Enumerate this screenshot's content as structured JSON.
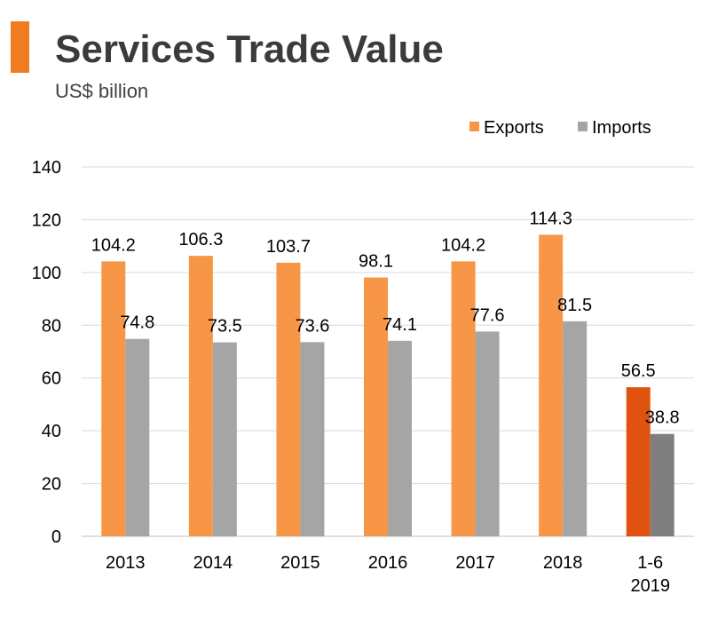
{
  "title": "Services Trade Value",
  "subtitle": "US$ billion",
  "colors": {
    "accent": "#f07c22",
    "exports": "#f79646",
    "imports": "#a5a5a5",
    "exports_highlight": "#e0520f",
    "imports_highlight": "#7f7f7f",
    "grid": "#d9d9d9",
    "axis_text": "#000000"
  },
  "chart_data": {
    "type": "bar",
    "title": "Services Trade Value",
    "subtitle": "US$ billion",
    "categories": [
      [
        "2013"
      ],
      [
        "2014"
      ],
      [
        "2015"
      ],
      [
        "2016"
      ],
      [
        "2017"
      ],
      [
        "2018"
      ],
      [
        "1-6",
        "2019"
      ]
    ],
    "series": [
      {
        "name": "Exports",
        "values": [
          104.2,
          106.3,
          103.7,
          98.1,
          104.2,
          114.3,
          56.5
        ]
      },
      {
        "name": "Imports",
        "values": [
          74.8,
          73.5,
          73.6,
          74.1,
          77.6,
          81.5,
          38.8
        ]
      }
    ],
    "value_labels": [
      [
        "104.2",
        "106.3",
        "103.7",
        "98.1",
        "104.2",
        "114.3",
        "56.5"
      ],
      [
        "74.8",
        "73.5",
        "73.6",
        "74.1",
        "77.6",
        "81.5",
        "38.8"
      ]
    ],
    "highlight_index": 6,
    "ylim": [
      0,
      140
    ],
    "yticks": [
      "0",
      "20",
      "40",
      "60",
      "80",
      "100",
      "120",
      "140"
    ],
    "grid": true,
    "legend_position": "top-right"
  }
}
